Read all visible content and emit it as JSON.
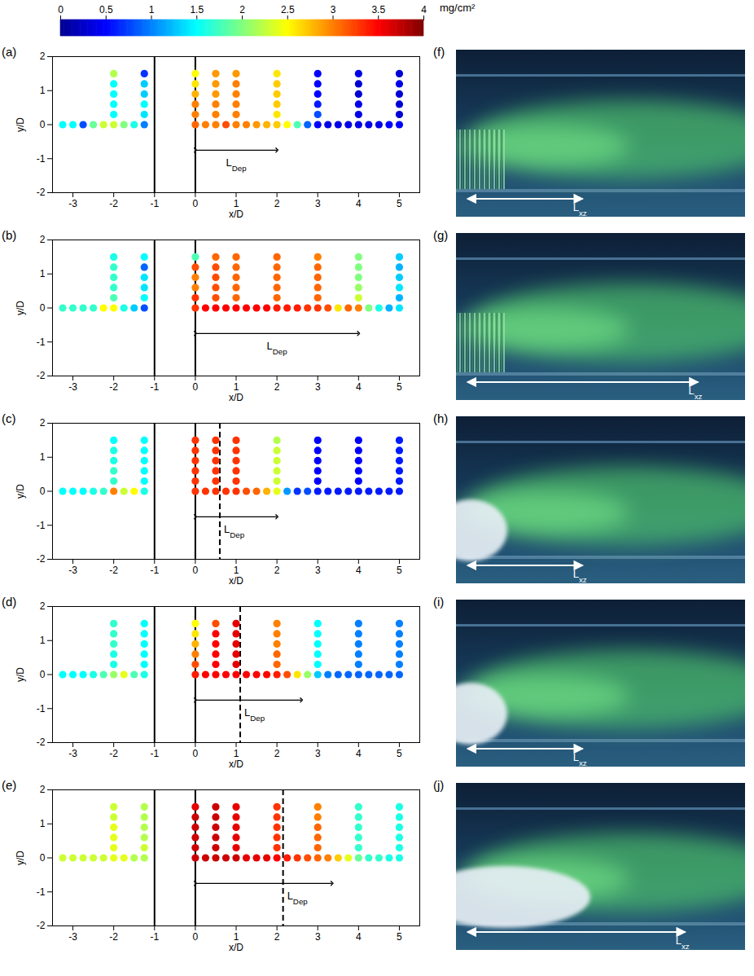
{
  "colorbar": {
    "range": [
      0,
      4
    ],
    "ticks": [
      0,
      0.5,
      1,
      1.5,
      2,
      2.5,
      3,
      3.5,
      4
    ],
    "unit": "mg/cm²",
    "colors": [
      "#00008f",
      "#0000ff",
      "#0080ff",
      "#00ffff",
      "#80ff80",
      "#ffff00",
      "#ff8000",
      "#ff0000",
      "#800000"
    ]
  },
  "sampling_grid": {
    "row_x": [
      -3.25,
      -3,
      -2.75,
      -2.5,
      -2.25,
      -2,
      -1.75,
      -1.5,
      -1.25,
      0,
      0.25,
      0.5,
      0.75,
      1,
      1.25,
      1.5,
      1.75,
      2,
      2.25,
      2.5,
      2.75,
      3,
      3.25,
      3.5,
      3.75,
      4,
      4.25,
      4.5,
      4.75,
      5
    ],
    "column_x": [
      -2,
      -1.25,
      0,
      0.5,
      1,
      2,
      3,
      4,
      5
    ],
    "column_y": [
      0.3,
      0.6,
      0.9,
      1.2,
      1.5
    ]
  },
  "chart_data": [
    {
      "type": "scatter",
      "panel": "(a)",
      "x_label": "x/D",
      "y_label": "y/D",
      "xlim": [
        -3.5,
        5.5
      ],
      "ylim": [
        -2,
        2
      ],
      "xticks": [
        -3,
        -2,
        -1,
        0,
        1,
        2,
        3,
        4,
        5
      ],
      "yticks": [
        -2,
        -1,
        0,
        1,
        2
      ],
      "walls_x": [
        -1,
        0
      ],
      "l_dep": {
        "label": "LDep",
        "x": [
          0,
          2
        ],
        "y": -0.75
      },
      "row_values": [
        1.5,
        1.5,
        0.8,
        1.9,
        2.3,
        2.3,
        2.0,
        1.6,
        1.0,
        3.1,
        3.0,
        3.0,
        3.2,
        3.0,
        3.0,
        2.9,
        2.8,
        2.7,
        2.5,
        1.8,
        0.9,
        0.5,
        0.4,
        0.4,
        0.4,
        0.4,
        0.4,
        0.4,
        0.5,
        0.5
      ],
      "column_values": [
        [
          1.5,
          1.5,
          1.5,
          1.5,
          2.2
        ],
        [
          1.4,
          1.5,
          1.3,
          1.3,
          0.7
        ],
        [
          3.0,
          3.0,
          2.8,
          2.6,
          2.5
        ],
        [
          3.0,
          3.0,
          2.9,
          2.9,
          2.9
        ],
        [
          3.0,
          3.0,
          3.0,
          3.0,
          2.9
        ],
        [
          2.6,
          2.7,
          2.7,
          2.7,
          2.6
        ],
        [
          0.8,
          0.6,
          0.5,
          0.5,
          0.5
        ],
        [
          0.4,
          0.4,
          0.3,
          0.3,
          0.4
        ],
        [
          0.3,
          0.3,
          0.3,
          0.4,
          0.3
        ]
      ]
    },
    {
      "type": "scatter",
      "panel": "(b)",
      "x_label": "x/D",
      "y_label": "y/D",
      "xlim": [
        -3.5,
        5.5
      ],
      "ylim": [
        -2,
        2
      ],
      "xticks": [
        -3,
        -2,
        -1,
        0,
        1,
        2,
        3,
        4,
        5
      ],
      "yticks": [
        -2,
        -1,
        0,
        1,
        2
      ],
      "walls_x": [
        -1,
        0
      ],
      "l_dep": {
        "label": "LDep",
        "x": [
          0,
          4
        ],
        "y": -0.75
      },
      "row_values": [
        1.7,
        1.7,
        1.7,
        1.7,
        2.5,
        2.5,
        1.6,
        1.3,
        0.8,
        3.3,
        3.5,
        3.5,
        3.5,
        3.5,
        3.5,
        3.5,
        3.5,
        3.4,
        3.4,
        3.4,
        3.3,
        3.3,
        3.2,
        2.6,
        3.1,
        3.0,
        2.0,
        1.6,
        1.2,
        1.4
      ],
      "column_values": [
        [
          1.8,
          1.7,
          1.7,
          1.7,
          1.6
        ],
        [
          1.5,
          1.4,
          1.4,
          0.9,
          1.5
        ],
        [
          3.3,
          3.0,
          3.0,
          3.2,
          1.8
        ],
        [
          3.2,
          3.2,
          3.2,
          3.2,
          3.1
        ],
        [
          3.1,
          3.1,
          3.1,
          3.1,
          3.1
        ],
        [
          3.1,
          3.1,
          3.1,
          3.1,
          3.1
        ],
        [
          3.1,
          3.1,
          3.1,
          3.1,
          3.0
        ],
        [
          2.3,
          2.1,
          2.0,
          2.0,
          2.0
        ],
        [
          1.2,
          1.4,
          1.3,
          1.2,
          1.3
        ]
      ]
    },
    {
      "type": "scatter",
      "panel": "(c)",
      "x_label": "x/D",
      "y_label": "y/D",
      "xlim": [
        -3.5,
        5.5
      ],
      "ylim": [
        -2,
        2
      ],
      "xticks": [
        -3,
        -2,
        -1,
        0,
        1,
        2,
        3,
        4,
        5
      ],
      "yticks": [
        -2,
        -1,
        0,
        1,
        2
      ],
      "walls_x": [
        -1,
        0
      ],
      "dashed_x": 0.6,
      "l_dep": {
        "label": "LDep",
        "x": [
          0,
          2
        ],
        "y": -0.75
      },
      "row_values": [
        1.5,
        1.5,
        1.5,
        1.6,
        1.7,
        3.0,
        2.3,
        2.5,
        1.6,
        3.3,
        3.3,
        3.3,
        3.3,
        3.3,
        3.2,
        3.1,
        2.8,
        2.4,
        1.1,
        0.7,
        0.8,
        0.6,
        0.6,
        0.6,
        0.6,
        0.6,
        0.6,
        0.6,
        0.6,
        0.6
      ],
      "column_values": [
        [
          1.7,
          1.7,
          1.6,
          1.6,
          1.5
        ],
        [
          1.5,
          1.5,
          1.5,
          1.5,
          1.5
        ],
        [
          3.3,
          3.3,
          3.3,
          3.3,
          3.3
        ],
        [
          3.3,
          3.3,
          3.3,
          3.3,
          3.3
        ],
        [
          3.3,
          3.3,
          3.3,
          3.3,
          3.3
        ],
        [
          2.3,
          2.3,
          2.3,
          2.3,
          2.2
        ],
        [
          0.5,
          0.5,
          0.5,
          0.5,
          0.5
        ],
        [
          0.5,
          0.5,
          0.5,
          0.5,
          0.5
        ],
        [
          0.6,
          0.6,
          0.6,
          0.6,
          0.6
        ]
      ]
    },
    {
      "type": "scatter",
      "panel": "(d)",
      "x_label": "x/D",
      "y_label": "y/D",
      "xlim": [
        -3.5,
        5.5
      ],
      "ylim": [
        -2,
        2
      ],
      "xticks": [
        -3,
        -2,
        -1,
        0,
        1,
        2,
        3,
        4,
        5
      ],
      "yticks": [
        -2,
        -1,
        0,
        1,
        2
      ],
      "walls_x": [
        -1,
        0
      ],
      "dashed_x": 1.1,
      "l_dep": {
        "label": "LDep",
        "x": [
          0,
          2.6
        ],
        "y": -0.75
      },
      "row_values": [
        1.5,
        1.5,
        1.5,
        1.6,
        1.8,
        2.1,
        2.4,
        1.8,
        1.6,
        3.4,
        3.5,
        3.5,
        3.5,
        3.5,
        3.5,
        3.5,
        3.5,
        3.4,
        3.2,
        2.6,
        2.1,
        1.3,
        1.0,
        0.9,
        0.9,
        0.9,
        0.9,
        0.9,
        0.9,
        0.9
      ],
      "column_values": [
        [
          1.6,
          1.6,
          1.7,
          1.7,
          1.7
        ],
        [
          1.5,
          1.5,
          1.5,
          1.5,
          1.5
        ],
        [
          3.2,
          3.0,
          2.8,
          2.6,
          2.5
        ],
        [
          3.5,
          3.5,
          3.5,
          3.5,
          3.2
        ],
        [
          3.6,
          3.6,
          3.6,
          3.6,
          3.6
        ],
        [
          3.1,
          3.1,
          3.0,
          3.0,
          3.0
        ],
        [
          1.5,
          1.5,
          1.5,
          1.5,
          1.5
        ],
        [
          1.0,
          1.0,
          1.0,
          1.0,
          1.0
        ],
        [
          1.0,
          1.0,
          1.0,
          1.0,
          1.0
        ]
      ]
    },
    {
      "type": "scatter",
      "panel": "(e)",
      "x_label": "x/D",
      "y_label": "y/D",
      "xlim": [
        -3.5,
        5.5
      ],
      "ylim": [
        -2,
        2
      ],
      "xticks": [
        -3,
        -2,
        -1,
        0,
        1,
        2,
        3,
        4,
        5
      ],
      "yticks": [
        -2,
        -1,
        0,
        1,
        2
      ],
      "walls_x": [
        -1,
        0
      ],
      "dashed_x": 2.15,
      "l_dep": {
        "label": "LDep",
        "x": [
          0,
          3.35
        ],
        "y": -0.75
      },
      "row_values": [
        2.3,
        2.3,
        2.3,
        2.3,
        2.3,
        2.4,
        2.4,
        2.2,
        2.2,
        3.7,
        3.7,
        3.7,
        3.7,
        3.7,
        3.6,
        3.6,
        3.6,
        3.5,
        3.4,
        3.3,
        3.2,
        3.1,
        3.0,
        2.7,
        2.4,
        1.9,
        1.7,
        1.7,
        1.6,
        1.6
      ],
      "column_values": [
        [
          2.4,
          2.4,
          2.4,
          2.3,
          2.3
        ],
        [
          2.3,
          2.2,
          2.2,
          2.2,
          2.2
        ],
        [
          3.7,
          3.7,
          3.7,
          3.7,
          3.6
        ],
        [
          3.7,
          3.7,
          3.7,
          3.7,
          3.7
        ],
        [
          3.6,
          3.6,
          3.6,
          3.6,
          3.6
        ],
        [
          3.3,
          3.3,
          3.3,
          3.3,
          3.3
        ],
        [
          3.1,
          3.1,
          3.1,
          3.0,
          3.0
        ],
        [
          1.7,
          1.7,
          1.7,
          1.7,
          1.7
        ],
        [
          1.6,
          1.6,
          1.6,
          1.6,
          1.6
        ]
      ]
    }
  ],
  "photos": [
    {
      "panel": "(f)",
      "annotation": "Lxz"
    },
    {
      "panel": "(g)",
      "annotation": "Lxz"
    },
    {
      "panel": "(h)",
      "annotation": "Lxz"
    },
    {
      "panel": "(i)",
      "annotation": "Lxz"
    },
    {
      "panel": "(j)",
      "annotation": "Lxz"
    }
  ]
}
